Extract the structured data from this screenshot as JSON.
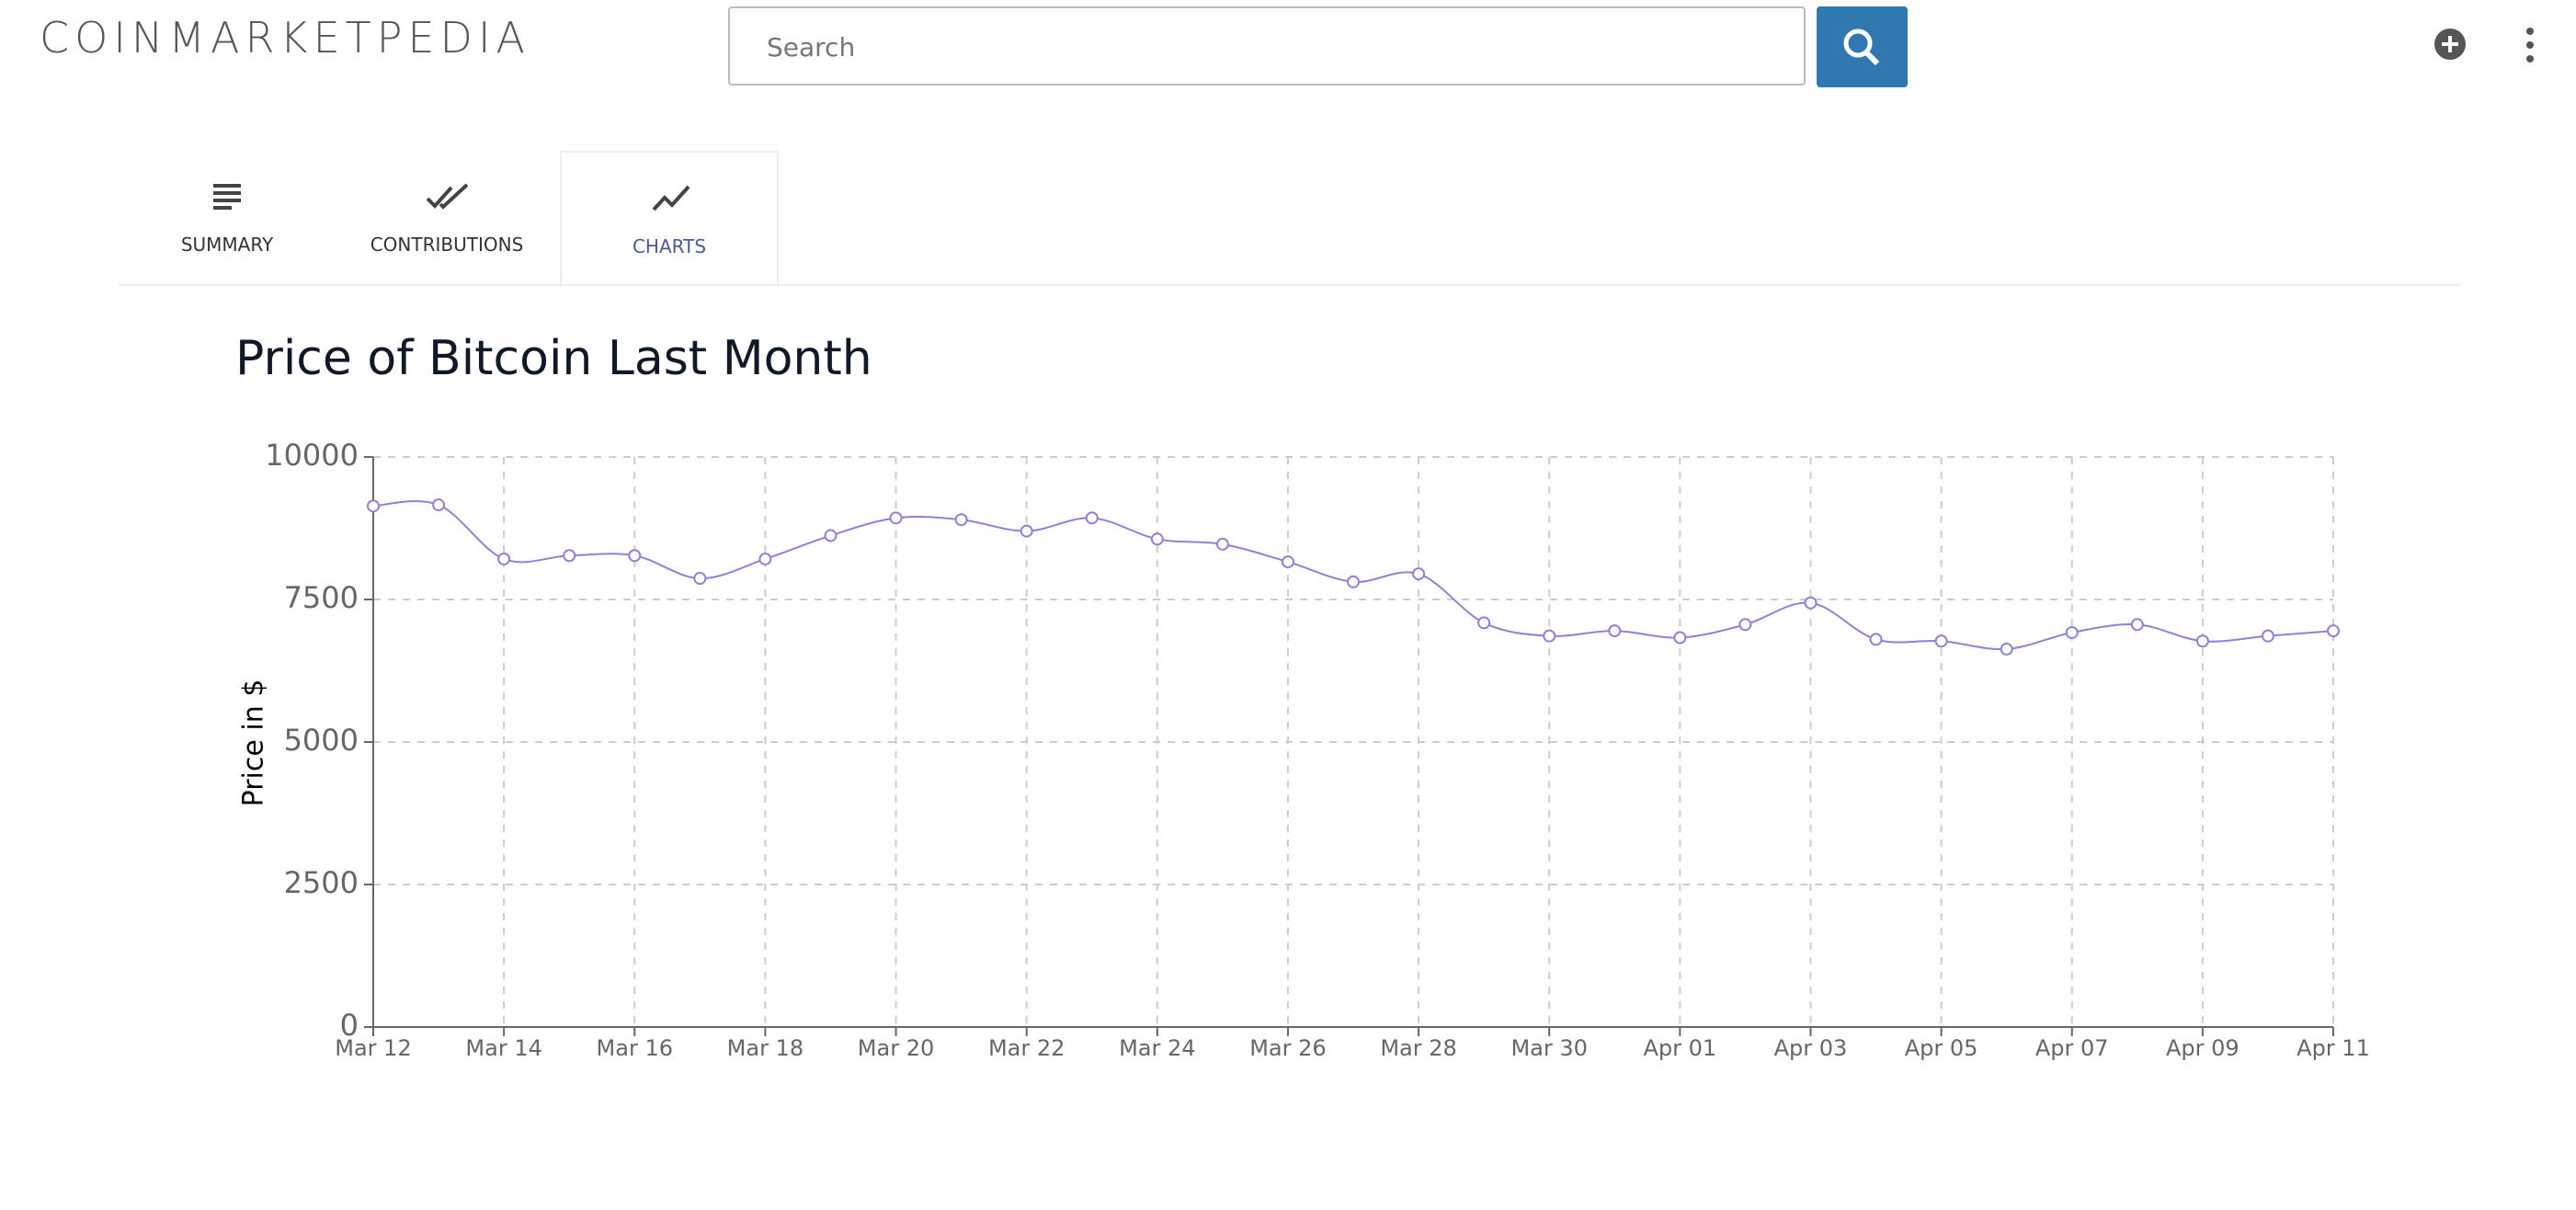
{
  "header": {
    "logo": "COINMARKETPEDIA",
    "search_placeholder": "Search"
  },
  "tabs": [
    "SUMMARY",
    "CONTRIBUTIONS",
    "CHARTS"
  ],
  "chart_data": {
    "type": "line",
    "title": "Price of Bitcoin Last Month",
    "y_label": "Price in $",
    "categories": [
      "Mar 12",
      null,
      "Mar 14",
      null,
      "Mar 16",
      null,
      "Mar 18",
      null,
      "Mar 20",
      null,
      "Mar 22",
      null,
      "Mar 24",
      null,
      "Mar 26",
      null,
      "Mar 28",
      null,
      "Mar 30",
      null,
      "Apr 01",
      null,
      "Apr 03",
      null,
      "Apr 05",
      null,
      "Apr 07",
      null,
      "Apr 09",
      null,
      "Apr 11"
    ],
    "series": [
      {
        "name": "Price",
        "color": "#8884d8",
        "values": [
          9140,
          9160,
          8210,
          8270,
          8270,
          7870,
          8210,
          8620,
          8930,
          8900,
          8700,
          8930,
          8560,
          8470,
          8160,
          7810,
          7950,
          7090,
          6860,
          6950,
          6830,
          7060,
          7440,
          6800,
          6770,
          6630,
          6920,
          7060,
          6770,
          6860,
          6950
        ]
      }
    ],
    "ylim": [
      0,
      10000
    ],
    "yticks": [
      0,
      2500,
      5000,
      7500,
      10000
    ],
    "grid": true
  }
}
